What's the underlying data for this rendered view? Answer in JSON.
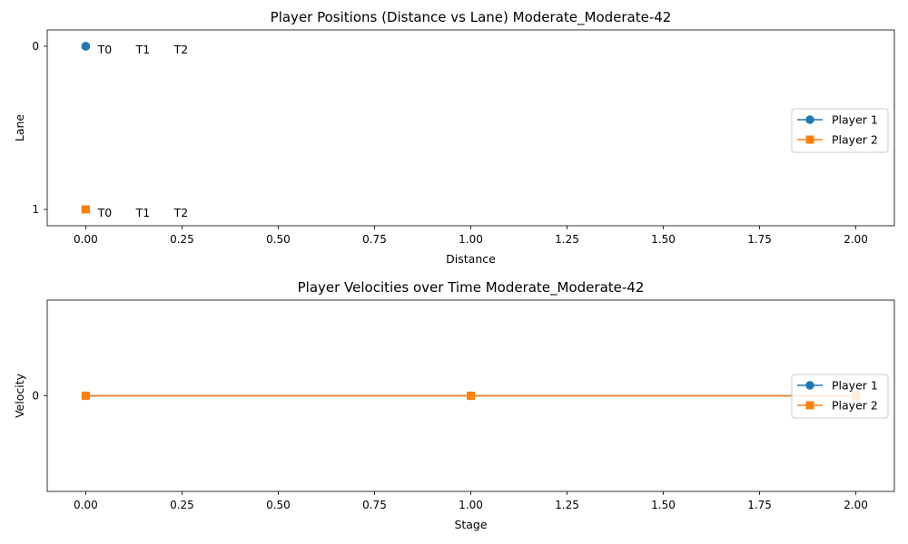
{
  "chart_data": [
    {
      "type": "line",
      "title": "Player Positions (Distance vs Lane) Moderate_Moderate-42",
      "xlabel": "Distance",
      "ylabel": "Lane",
      "xlim": [
        -0.1,
        2.1
      ],
      "ylim": [
        1.1,
        -0.1
      ],
      "y_inverted": true,
      "xticks": [
        0.0,
        0.25,
        0.5,
        0.75,
        1.0,
        1.25,
        1.5,
        1.75,
        2.0
      ],
      "xtick_labels": [
        "0.00",
        "0.25",
        "0.50",
        "0.75",
        "1.00",
        "1.25",
        "1.50",
        "1.75",
        "2.00"
      ],
      "yticks": [
        0,
        1
      ],
      "ytick_labels": [
        "0",
        "1"
      ],
      "grid": false,
      "legend_position": "center-right",
      "series": [
        {
          "name": "Player 1",
          "color": "#1f77b4",
          "marker": "circle",
          "x": [
            0,
            0,
            0
          ],
          "y": [
            0,
            0,
            0
          ]
        },
        {
          "name": "Player 2",
          "color": "#ff7f0e",
          "marker": "square",
          "x": [
            0,
            0,
            0
          ],
          "y": [
            1,
            1,
            1
          ]
        }
      ],
      "annotations": [
        {
          "text": "T0",
          "series": 0,
          "point": 0
        },
        {
          "text": "T1",
          "series": 0,
          "point": 1
        },
        {
          "text": "T2",
          "series": 0,
          "point": 2
        },
        {
          "text": "T0",
          "series": 1,
          "point": 0
        },
        {
          "text": "T1",
          "series": 1,
          "point": 1
        },
        {
          "text": "T2",
          "series": 1,
          "point": 2
        }
      ]
    },
    {
      "type": "line",
      "title": "Player Velocities over Time Moderate_Moderate-42",
      "xlabel": "Stage",
      "ylabel": "Velocity",
      "xlim": [
        -0.1,
        2.1
      ],
      "ylim": [
        -0.06,
        0.06
      ],
      "y_inverted": false,
      "xticks": [
        0.0,
        0.25,
        0.5,
        0.75,
        1.0,
        1.25,
        1.5,
        1.75,
        2.0
      ],
      "xtick_labels": [
        "0.00",
        "0.25",
        "0.50",
        "0.75",
        "1.00",
        "1.25",
        "1.50",
        "1.75",
        "2.00"
      ],
      "yticks": [
        0
      ],
      "ytick_labels": [
        "0"
      ],
      "grid": false,
      "legend_position": "center-right",
      "series": [
        {
          "name": "Player 1",
          "color": "#1f77b4",
          "marker": "circle",
          "x": [
            0,
            1,
            2
          ],
          "y": [
            0,
            0,
            0
          ]
        },
        {
          "name": "Player 2",
          "color": "#ff7f0e",
          "marker": "square",
          "x": [
            0,
            1,
            2
          ],
          "y": [
            0,
            0,
            0
          ]
        }
      ],
      "annotations": []
    }
  ]
}
